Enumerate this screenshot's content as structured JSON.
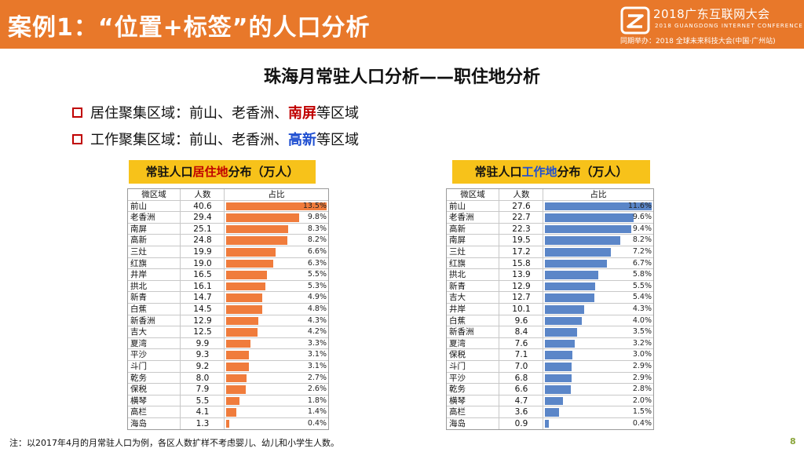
{
  "header": {
    "title": "案例1：“位置+标签”的人口分析",
    "brand_line1": "2018广东互联网大会",
    "brand_line2": "2018 GUANGDONG INTERNET CONFERENCE",
    "brand_line3": "同期举办：2018 全球未来科技大会(中国·广州站)",
    "bg_color": "#e8782a"
  },
  "subtitle": "珠海月常驻人口分析——职住地分析",
  "bullets": [
    {
      "prefix": "居住聚集区域：前山、老香洲、",
      "highlight": "南屏",
      "suffix": "等区域",
      "highlight_color": "#c00000"
    },
    {
      "prefix": "工作聚集区域：前山、老香洲、",
      "highlight": "高新",
      "suffix": "等区域",
      "highlight_color": "#1f4fd1"
    }
  ],
  "residence_table": {
    "title_prefix": "常驻人口",
    "title_em": "居住地",
    "title_suffix": "分布（万人）",
    "headers": [
      "微区域",
      "人数",
      "占比"
    ],
    "bar_color": "#f07c3c",
    "rows": [
      {
        "name": "前山",
        "value": "40.6",
        "pct": "13.5%",
        "frac": 0.135
      },
      {
        "name": "老香洲",
        "value": "29.4",
        "pct": "9.8%",
        "frac": 0.098
      },
      {
        "name": "南屏",
        "value": "25.1",
        "pct": "8.3%",
        "frac": 0.083
      },
      {
        "name": "高新",
        "value": "24.8",
        "pct": "8.2%",
        "frac": 0.082
      },
      {
        "name": "三灶",
        "value": "19.9",
        "pct": "6.6%",
        "frac": 0.066
      },
      {
        "name": "红旗",
        "value": "19.0",
        "pct": "6.3%",
        "frac": 0.063
      },
      {
        "name": "井岸",
        "value": "16.5",
        "pct": "5.5%",
        "frac": 0.055
      },
      {
        "name": "拱北",
        "value": "16.1",
        "pct": "5.3%",
        "frac": 0.053
      },
      {
        "name": "新青",
        "value": "14.7",
        "pct": "4.9%",
        "frac": 0.049
      },
      {
        "name": "白蕉",
        "value": "14.5",
        "pct": "4.8%",
        "frac": 0.048
      },
      {
        "name": "新香洲",
        "value": "12.9",
        "pct": "4.3%",
        "frac": 0.043
      },
      {
        "name": "吉大",
        "value": "12.5",
        "pct": "4.2%",
        "frac": 0.042
      },
      {
        "name": "夏湾",
        "value": "9.9",
        "pct": "3.3%",
        "frac": 0.033
      },
      {
        "name": "平沙",
        "value": "9.3",
        "pct": "3.1%",
        "frac": 0.031
      },
      {
        "name": "斗门",
        "value": "9.2",
        "pct": "3.1%",
        "frac": 0.031
      },
      {
        "name": "乾务",
        "value": "8.0",
        "pct": "2.7%",
        "frac": 0.027
      },
      {
        "name": "保税",
        "value": "7.9",
        "pct": "2.6%",
        "frac": 0.026
      },
      {
        "name": "横琴",
        "value": "5.5",
        "pct": "1.8%",
        "frac": 0.018
      },
      {
        "name": "高栏",
        "value": "4.1",
        "pct": "1.4%",
        "frac": 0.014
      },
      {
        "name": "海岛",
        "value": "1.3",
        "pct": "0.4%",
        "frac": 0.004
      }
    ]
  },
  "work_table": {
    "title_prefix": "常驻人口",
    "title_em": "工作地",
    "title_suffix": "分布（万人）",
    "headers": [
      "微区域",
      "人数",
      "占比"
    ],
    "bar_color": "#5b86c8",
    "rows": [
      {
        "name": "前山",
        "value": "27.6",
        "pct": "11.6%",
        "frac": 0.116
      },
      {
        "name": "老香洲",
        "value": "22.7",
        "pct": "9.6%",
        "frac": 0.096
      },
      {
        "name": "高新",
        "value": "22.3",
        "pct": "9.4%",
        "frac": 0.094
      },
      {
        "name": "南屏",
        "value": "19.5",
        "pct": "8.2%",
        "frac": 0.082
      },
      {
        "name": "三灶",
        "value": "17.2",
        "pct": "7.2%",
        "frac": 0.072
      },
      {
        "name": "红旗",
        "value": "15.8",
        "pct": "6.7%",
        "frac": 0.067
      },
      {
        "name": "拱北",
        "value": "13.9",
        "pct": "5.8%",
        "frac": 0.058
      },
      {
        "name": "新青",
        "value": "12.9",
        "pct": "5.5%",
        "frac": 0.055
      },
      {
        "name": "吉大",
        "value": "12.7",
        "pct": "5.4%",
        "frac": 0.054
      },
      {
        "name": "井岸",
        "value": "10.1",
        "pct": "4.3%",
        "frac": 0.043
      },
      {
        "name": "白蕉",
        "value": "9.6",
        "pct": "4.0%",
        "frac": 0.04
      },
      {
        "name": "新香洲",
        "value": "8.4",
        "pct": "3.5%",
        "frac": 0.035
      },
      {
        "name": "夏湾",
        "value": "7.6",
        "pct": "3.2%",
        "frac": 0.032
      },
      {
        "name": "保税",
        "value": "7.1",
        "pct": "3.0%",
        "frac": 0.03
      },
      {
        "name": "斗门",
        "value": "7.0",
        "pct": "2.9%",
        "frac": 0.029
      },
      {
        "name": "平沙",
        "value": "6.8",
        "pct": "2.9%",
        "frac": 0.029
      },
      {
        "name": "乾务",
        "value": "6.6",
        "pct": "2.8%",
        "frac": 0.028
      },
      {
        "name": "横琴",
        "value": "4.7",
        "pct": "2.0%",
        "frac": 0.02
      },
      {
        "name": "高栏",
        "value": "3.6",
        "pct": "1.5%",
        "frac": 0.015
      },
      {
        "name": "海岛",
        "value": "0.9",
        "pct": "0.4%",
        "frac": 0.004
      }
    ]
  },
  "footer_note": "注：以2017年4月的月常驻人口为例，各区人数扩样不考虑婴儿、幼儿和小学生人数。",
  "page_number": "8"
}
